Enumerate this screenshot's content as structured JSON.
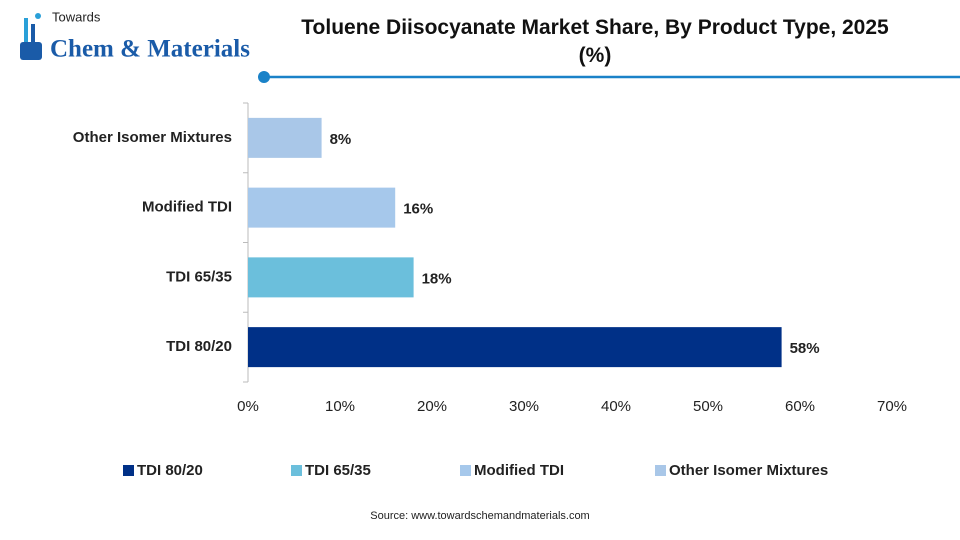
{
  "logo": {
    "top": "Towards",
    "main": "Chem & Materials"
  },
  "chart_data": {
    "type": "hbar",
    "title": "Toluene Diisocyanate Market Share, By Product Type, 2025 (%)",
    "categories": [
      "TDI 80/20",
      "TDI 65/35",
      "Modified TDI",
      "Other Isomer Mixtures"
    ],
    "values": [
      58,
      18,
      16,
      8
    ],
    "value_labels": [
      "58%",
      "18%",
      "16%",
      "8%"
    ],
    "colors": [
      "#003087",
      "#6bbfdc",
      "#a6c8eb",
      "#a9c7e8"
    ],
    "xlim": [
      0,
      70
    ],
    "xticks": [
      {
        "value": 0,
        "label": "0%"
      },
      {
        "value": 10,
        "label": "10%"
      },
      {
        "value": 20,
        "label": "20%"
      },
      {
        "value": 30,
        "label": "30%"
      },
      {
        "value": 40,
        "label": "40%"
      },
      {
        "value": 50,
        "label": "50%"
      },
      {
        "value": 60,
        "label": "60%"
      },
      {
        "value": 70,
        "label": "70%"
      }
    ],
    "grid": false,
    "legend": "bottom",
    "source": "Source: www.towardschemandmaterials.com"
  }
}
